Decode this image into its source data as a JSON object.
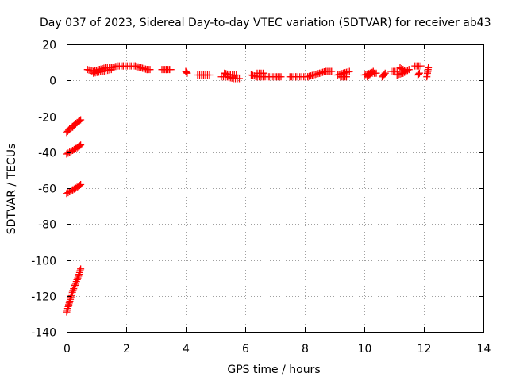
{
  "chart_data": {
    "type": "scatter",
    "title": "Day 037 of 2023, Sidereal Day-to-day VTEC variation (SDTVAR) for receiver ab43",
    "xlabel": "GPS time / hours",
    "ylabel": "SDTVAR / TECUs",
    "xlim": [
      0,
      14
    ],
    "ylim": [
      -140,
      20
    ],
    "xticks": [
      "0",
      "2",
      "4",
      "6",
      "8",
      "10",
      "12",
      "14"
    ],
    "yticks": [
      "20",
      "0",
      "-20",
      "-40",
      "-60",
      "-80",
      "-100",
      "-120",
      "-140"
    ],
    "grid": true,
    "marker": "plus",
    "color": "#ff0000",
    "series": [
      {
        "segments": [
          {
            "x": [
              0.0,
              0.1,
              0.2,
              0.3,
              0.4,
              0.47
            ],
            "y": [
              -29,
              -27,
              -26,
              -24,
              -23,
              -22
            ]
          },
          {
            "x": [
              0.0,
              0.1,
              0.2,
              0.3,
              0.4,
              0.47
            ],
            "y": [
              -41,
              -40,
              -39,
              -38,
              -37,
              -36
            ]
          },
          {
            "x": [
              0.0,
              0.1,
              0.2,
              0.3,
              0.4,
              0.47
            ],
            "y": [
              -63,
              -62,
              -61,
              -60,
              -59,
              -58
            ]
          },
          {
            "x": [
              0.0,
              0.07,
              0.14,
              0.21,
              0.28,
              0.35,
              0.42,
              0.47
            ],
            "y": [
              -129,
              -125,
              -121,
              -117,
              -114,
              -111,
              -108,
              -105
            ]
          },
          {
            "x": [
              0.7,
              0.9,
              1.1,
              1.3,
              1.5,
              1.7,
              1.9,
              2.1,
              2.3,
              2.5,
              2.7,
              2.8
            ],
            "y": [
              6,
              5,
              6,
              7,
              7,
              8,
              8,
              8,
              8,
              7,
              6,
              6
            ]
          },
          {
            "x": [
              0.9,
              1.2,
              1.5
            ],
            "y": [
              4,
              5,
              6
            ]
          },
          {
            "x": [
              3.2,
              3.35,
              3.5
            ],
            "y": [
              6,
              6,
              6
            ]
          },
          {
            "x": [
              4.0,
              4.05
            ],
            "y": [
              5,
              4
            ]
          },
          {
            "x": [
              4.4,
              4.6,
              4.8
            ],
            "y": [
              3,
              3,
              3
            ]
          },
          {
            "x": [
              5.2,
              5.4,
              5.6,
              5.8
            ],
            "y": [
              2,
              2,
              1,
              1
            ]
          },
          {
            "x": [
              5.3,
              5.5,
              5.7
            ],
            "y": [
              4,
              3,
              3
            ]
          },
          {
            "x": [
              6.2,
              6.4,
              6.6,
              6.8,
              7.0,
              7.2
            ],
            "y": [
              3,
              2,
              2,
              2,
              2,
              2
            ]
          },
          {
            "x": [
              6.4,
              6.6
            ],
            "y": [
              4,
              4
            ]
          },
          {
            "x": [
              7.5,
              7.7,
              7.9,
              8.1,
              8.3,
              8.5,
              8.7,
              8.9
            ],
            "y": [
              2,
              2,
              2,
              2,
              3,
              4,
              5,
              5
            ]
          },
          {
            "x": [
              9.1,
              9.3,
              9.5
            ],
            "y": [
              3,
              4,
              5
            ]
          },
          {
            "x": [
              9.2,
              9.4
            ],
            "y": [
              2,
              2
            ]
          },
          {
            "x": [
              10.0,
              10.2,
              10.4
            ],
            "y": [
              3,
              4,
              4
            ]
          },
          {
            "x": [
              10.1,
              10.3
            ],
            "y": [
              2,
              5
            ]
          },
          {
            "x": [
              10.6,
              10.7
            ],
            "y": [
              2,
              4
            ]
          },
          {
            "x": [
              10.9,
              11.1
            ],
            "y": [
              5,
              5
            ]
          },
          {
            "x": [
              11.1,
              11.3,
              11.5
            ],
            "y": [
              3,
              4,
              6
            ]
          },
          {
            "x": [
              11.2,
              11.4
            ],
            "y": [
              7,
              5
            ]
          },
          {
            "x": [
              11.7,
              11.9
            ],
            "y": [
              8,
              8
            ]
          },
          {
            "x": [
              11.8,
              11.85
            ],
            "y": [
              3,
              4
            ]
          },
          {
            "x": [
              12.1,
              12.15
            ],
            "y": [
              2,
              7
            ]
          }
        ]
      }
    ]
  }
}
